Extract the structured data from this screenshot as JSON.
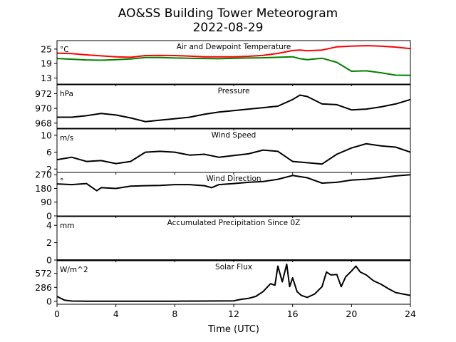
{
  "figure": {
    "title_line1": "AO&SS Building Tower Meteorogram",
    "title_line2": "2022-08-29",
    "xlabel": "Time (UTC)"
  },
  "chart_data": [
    {
      "type": "line",
      "title": "Air and Dewpoint Temperature",
      "unit": "°C",
      "xlim": [
        0,
        24
      ],
      "ylim": [
        10.5,
        28.5
      ],
      "yticks": [
        13,
        19,
        25
      ],
      "x": [
        0,
        1,
        2,
        3,
        4,
        5,
        6,
        7,
        8,
        9,
        10,
        11,
        12,
        13,
        14,
        15,
        16,
        16.5,
        17,
        18,
        19,
        20,
        21,
        22,
        23,
        24
      ],
      "series": [
        {
          "color": "#ff0000",
          "values": [
            23.3,
            23.1,
            22.6,
            22.2,
            21.8,
            21.6,
            22.3,
            22.4,
            22.3,
            22.1,
            21.8,
            21.8,
            21.8,
            22.0,
            22.4,
            23.2,
            24.4,
            24.6,
            24.3,
            24.6,
            25.9,
            26.2,
            26.4,
            26.2,
            25.8,
            25.2
          ]
        },
        {
          "color": "#008000",
          "values": [
            21.1,
            20.8,
            20.5,
            20.4,
            20.6,
            20.9,
            21.5,
            21.5,
            21.3,
            21.2,
            21.1,
            21.0,
            21.2,
            21.3,
            21.4,
            21.6,
            21.8,
            21.0,
            20.6,
            21.2,
            19.5,
            15.8,
            16.0,
            15.2,
            14.2,
            14.1
          ]
        }
      ]
    },
    {
      "type": "line",
      "title": "Pressure",
      "unit": "hPa",
      "xlim": [
        0,
        24
      ],
      "ylim": [
        967.3,
        973.2
      ],
      "yticks": [
        968,
        970,
        972
      ],
      "x": [
        0,
        1,
        2,
        3,
        4,
        5,
        6,
        7,
        8,
        9,
        10,
        11,
        12,
        13,
        14,
        15,
        16,
        16.5,
        17,
        18,
        19,
        20,
        21,
        22,
        23,
        24
      ],
      "series": [
        {
          "color": "#000000",
          "values": [
            968.8,
            968.8,
            969.0,
            969.3,
            969.1,
            968.7,
            968.2,
            968.4,
            968.6,
            968.8,
            969.2,
            969.5,
            969.7,
            969.9,
            970.1,
            970.3,
            971.2,
            971.8,
            971.6,
            970.6,
            970.5,
            969.8,
            969.9,
            970.2,
            970.6,
            971.2
          ]
        }
      ]
    },
    {
      "type": "line",
      "title": "Wind Speed",
      "unit": "m/s",
      "xlim": [
        0,
        24
      ],
      "ylim": [
        1.2,
        11.5
      ],
      "yticks": [
        2,
        6,
        10
      ],
      "x": [
        0,
        1,
        2,
        3,
        4,
        5,
        6,
        7,
        8,
        9,
        10,
        11,
        12,
        13,
        14,
        15,
        16,
        17,
        18,
        19,
        20,
        21,
        22,
        23,
        24
      ],
      "series": [
        {
          "color": "#000000",
          "values": [
            4.2,
            4.8,
            3.8,
            4.0,
            3.3,
            3.8,
            6.0,
            6.2,
            6.0,
            5.3,
            5.5,
            4.8,
            5.2,
            5.6,
            6.5,
            6.2,
            3.8,
            3.5,
            3.2,
            5.5,
            7.0,
            8.0,
            7.5,
            7.2,
            6.0
          ]
        }
      ]
    },
    {
      "type": "line",
      "title": "Wind Direction",
      "unit": "°",
      "xlim": [
        0,
        24
      ],
      "ylim": [
        0,
        285
      ],
      "yticks": [
        0,
        90,
        180,
        270
      ],
      "x": [
        0,
        1,
        2,
        2.7,
        3,
        4,
        5,
        6,
        7,
        8,
        9,
        10,
        10.5,
        11,
        12,
        13,
        14,
        15,
        16,
        17,
        18,
        19,
        20,
        21,
        22,
        23,
        24
      ],
      "series": [
        {
          "color": "#000000",
          "values": [
            210,
            205,
            212,
            165,
            185,
            180,
            195,
            198,
            200,
            205,
            205,
            198,
            185,
            205,
            212,
            220,
            225,
            240,
            265,
            250,
            215,
            220,
            235,
            240,
            250,
            262,
            270
          ]
        }
      ]
    },
    {
      "type": "line",
      "title": "Accumulated Precipitation Since 0Z",
      "unit": "mm",
      "xlim": [
        0,
        24
      ],
      "ylim": [
        0,
        5
      ],
      "yticks": [
        0,
        2,
        4
      ],
      "x": [
        0,
        24
      ],
      "series": [
        {
          "color": "#000000",
          "values": [
            0,
            0
          ]
        }
      ]
    },
    {
      "type": "line",
      "title": "Solar Flux",
      "unit": "W/m^2",
      "xlim": [
        0,
        24
      ],
      "ylim": [
        -60,
        830
      ],
      "yticks": [
        0,
        286,
        572
      ],
      "x": [
        0,
        0.5,
        1,
        2,
        4,
        6,
        8,
        10,
        12,
        12.5,
        13,
        13.5,
        14,
        14.5,
        14.8,
        15,
        15.3,
        15.6,
        15.8,
        16,
        16.3,
        16.6,
        17,
        17.5,
        18,
        18.3,
        18.6,
        19,
        19.3,
        19.6,
        20,
        20.3,
        20.6,
        21,
        21.5,
        22,
        22.5,
        23,
        24
      ],
      "series": [
        {
          "color": "#000000",
          "values": [
            100,
            25,
            5,
            3,
            3,
            3,
            3,
            5,
            10,
            40,
            60,
            100,
            200,
            360,
            330,
            720,
            400,
            760,
            300,
            480,
            200,
            120,
            80,
            150,
            300,
            600,
            540,
            550,
            300,
            500,
            620,
            720,
            600,
            540,
            420,
            350,
            260,
            180,
            120
          ]
        }
      ]
    }
  ],
  "xaxis": {
    "ticks": [
      0,
      4,
      8,
      12,
      16,
      20,
      24
    ]
  }
}
